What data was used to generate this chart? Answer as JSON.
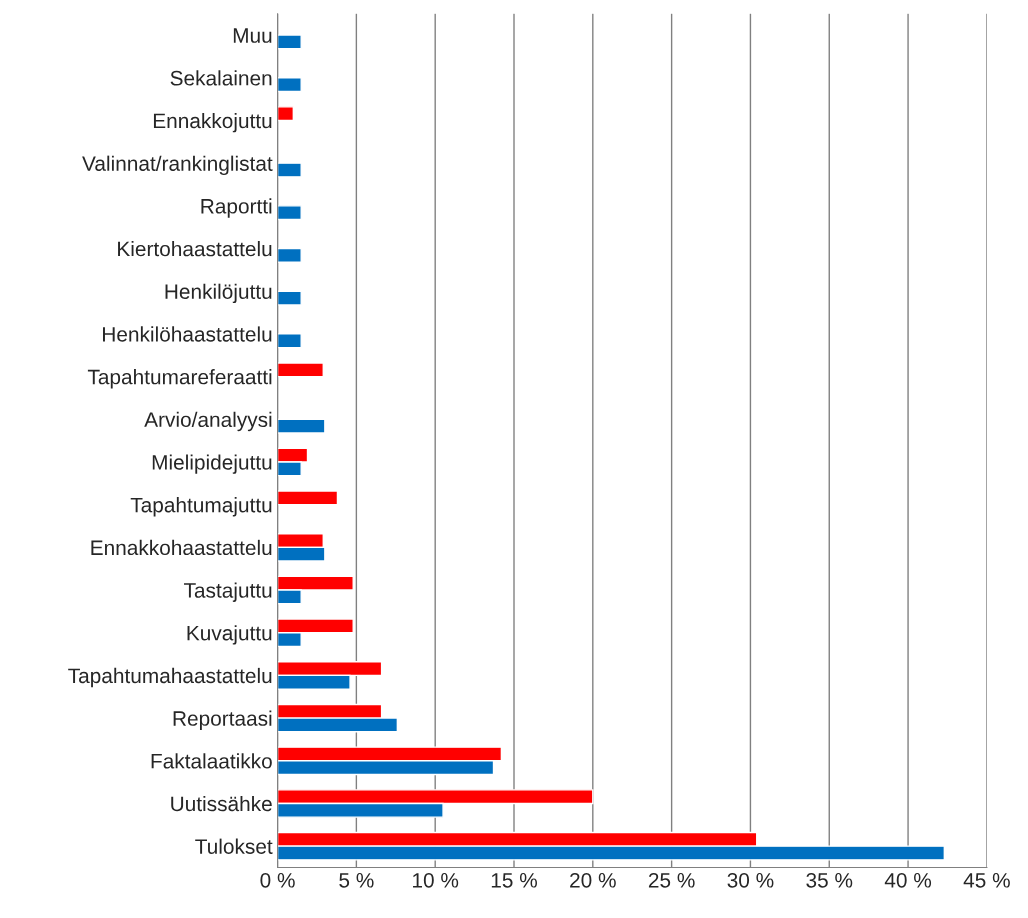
{
  "chart_data": {
    "type": "bar",
    "orientation": "horizontal",
    "categories": [
      "Muu",
      "Sekalainen",
      "Ennakkojuttu",
      "Valinnat/rankinglistat",
      "Raportti",
      "Kiertohaastattelu",
      "Henkilöjuttu",
      "Henkilöhaastattelu",
      "Tapahtumareferaatti",
      "Arvio/analyysi",
      "Mielipidejuttu",
      "Tapahtumajuttu",
      "Ennakkohaastattelu",
      "Tastajuttu",
      "Kuvajuttu",
      "Tapahtumahaastattelu",
      "Reportaasi",
      "Faktalaatikko",
      "Uutissähke",
      "Tulokset"
    ],
    "series": [
      {
        "color": "#ff0000",
        "values": [
          null,
          null,
          1.0,
          null,
          null,
          null,
          null,
          null,
          2.9,
          null,
          1.9,
          3.8,
          2.9,
          4.8,
          4.8,
          6.6,
          6.6,
          14.2,
          20.0,
          30.4
        ]
      },
      {
        "color": "#0070c0",
        "values": [
          1.5,
          1.5,
          null,
          1.5,
          1.5,
          1.5,
          1.5,
          1.5,
          null,
          3.0,
          1.5,
          null,
          3.0,
          1.5,
          1.5,
          4.6,
          7.6,
          13.7,
          10.5,
          42.3
        ]
      }
    ],
    "xlim": [
      0,
      45
    ],
    "xticks": [
      {
        "value": 0,
        "label": "0 %"
      },
      {
        "value": 5,
        "label": "5 %"
      },
      {
        "value": 10,
        "label": "10 %"
      },
      {
        "value": 15,
        "label": "15 %"
      },
      {
        "value": 20,
        "label": "20 %"
      },
      {
        "value": 25,
        "label": "25 %"
      },
      {
        "value": 30,
        "label": "30 %"
      },
      {
        "value": 35,
        "label": "35 %"
      },
      {
        "value": 40,
        "label": "40 %"
      },
      {
        "value": 45,
        "label": "45 %"
      }
    ],
    "grid": "x"
  }
}
